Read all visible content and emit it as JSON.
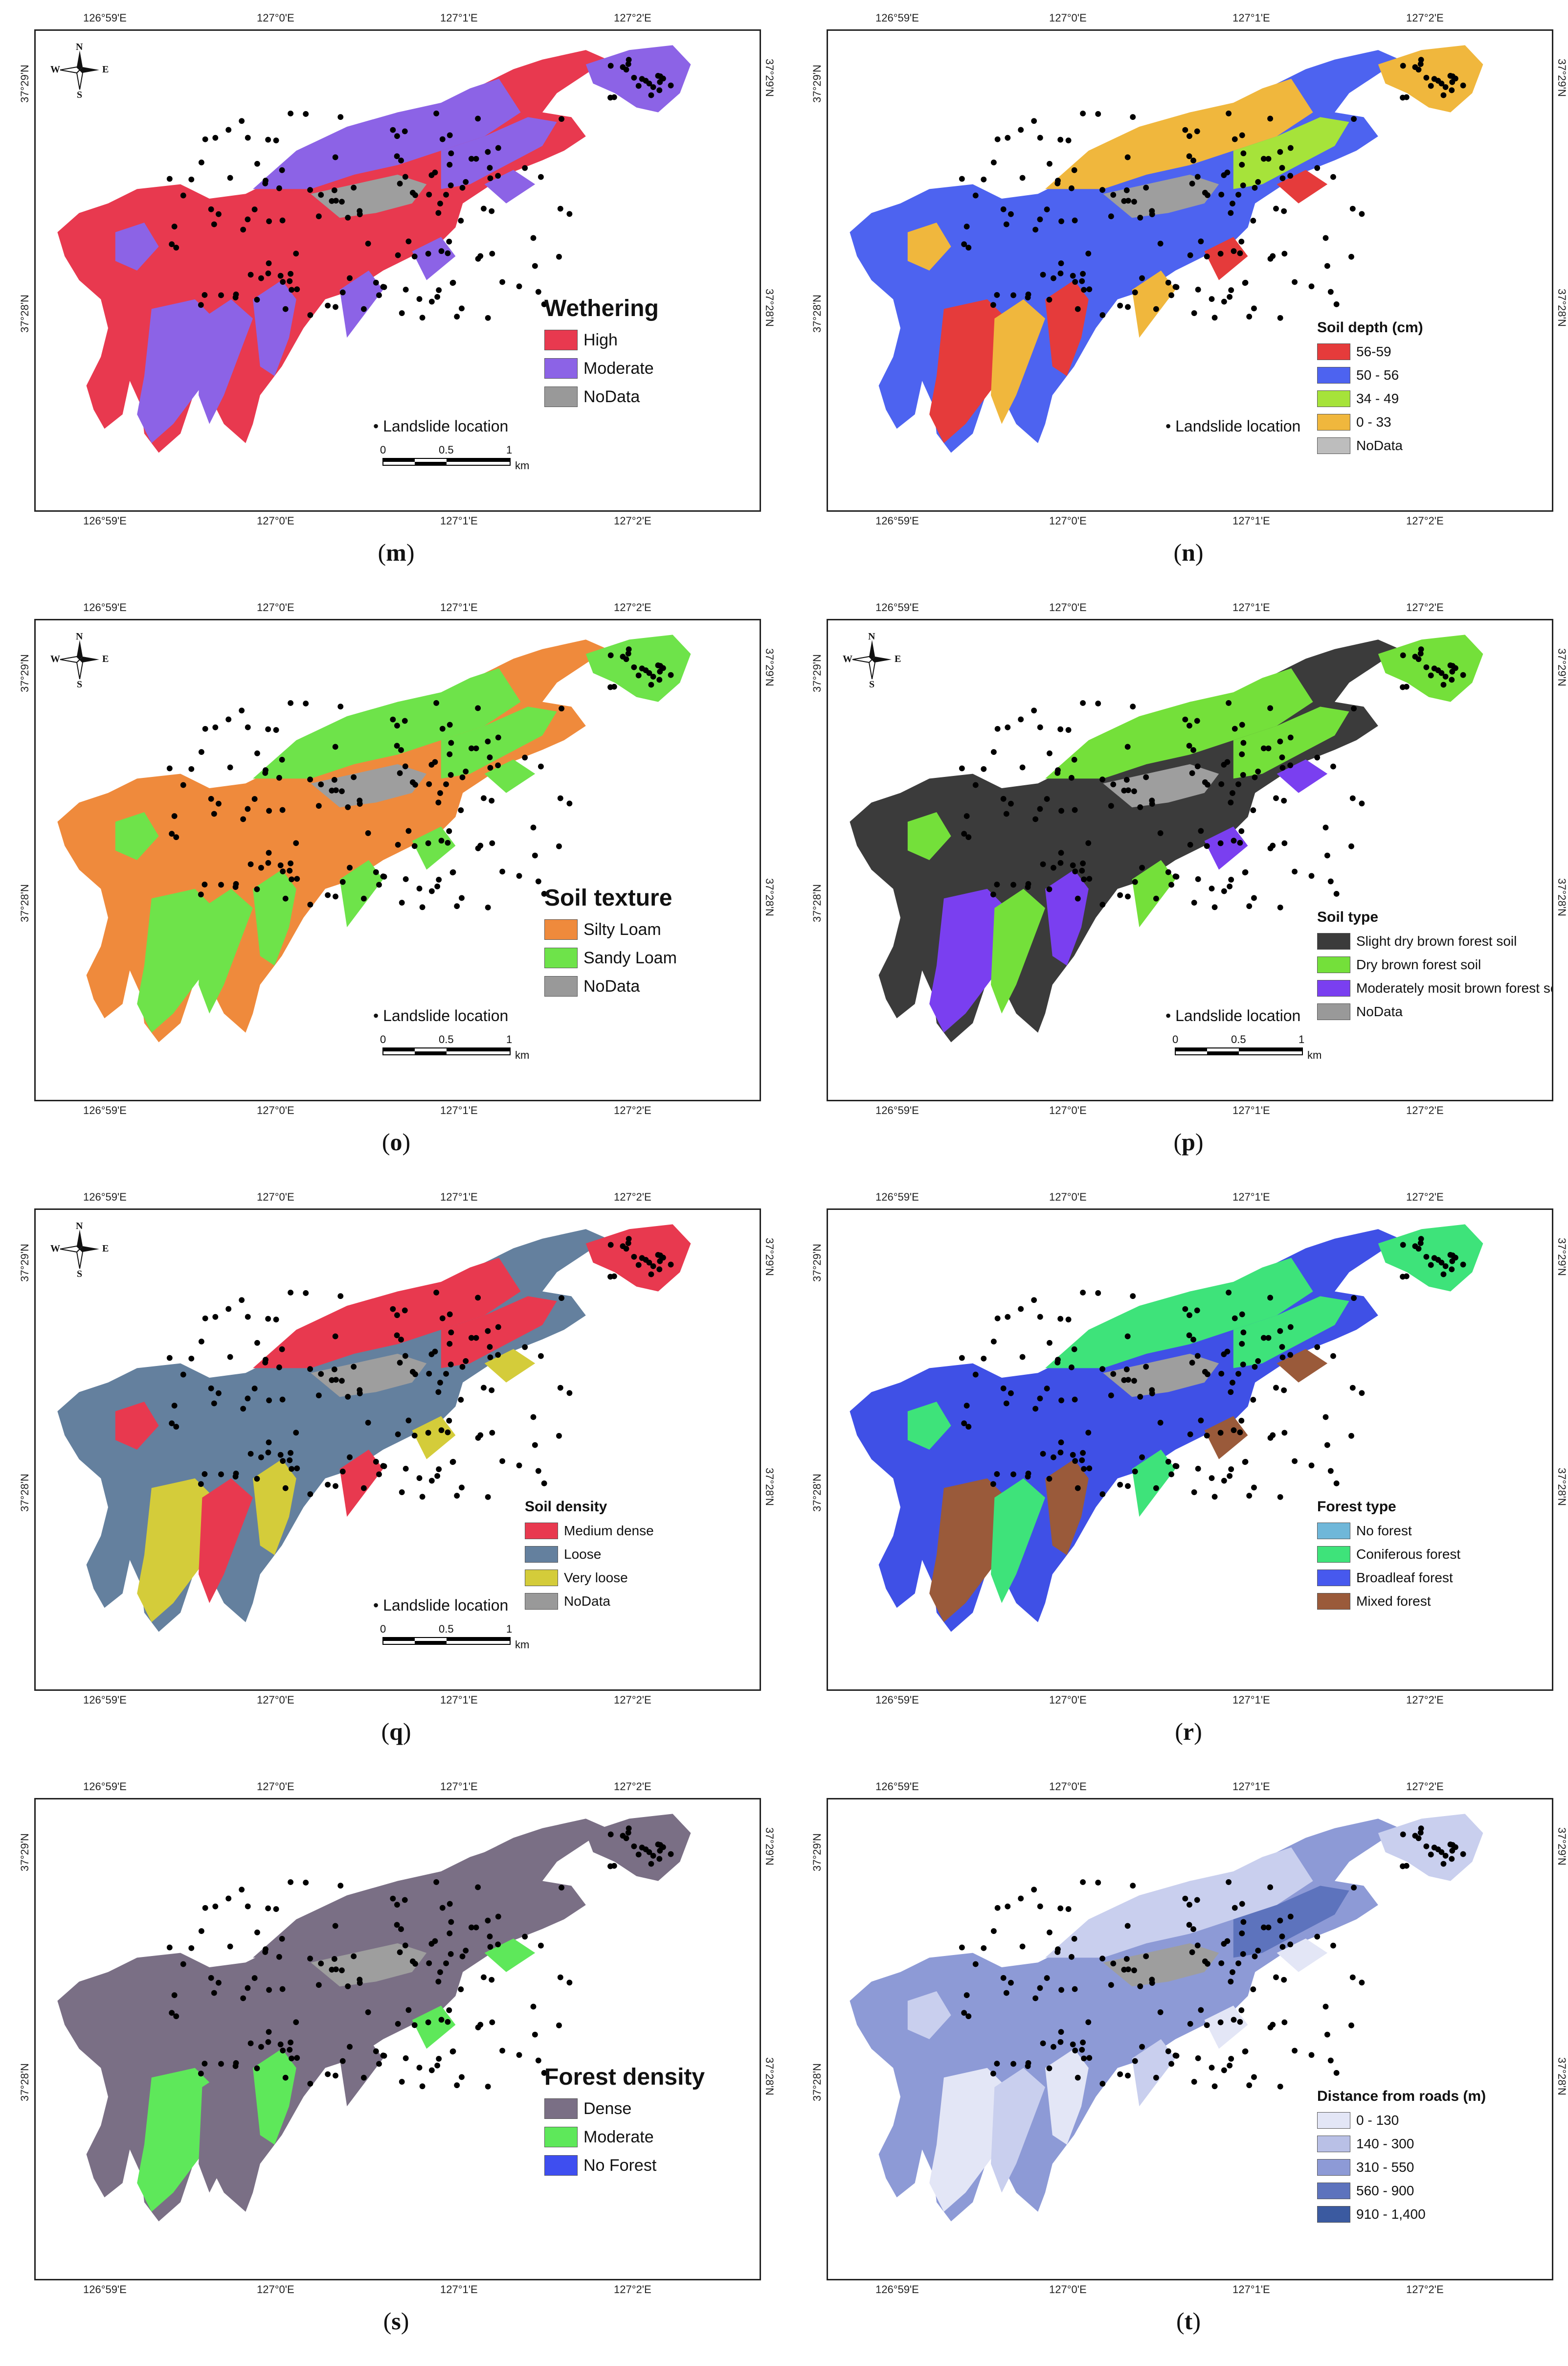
{
  "ticks": {
    "lon": [
      "126°59'E",
      "127°0'E",
      "127°1'E",
      "127°2'E"
    ],
    "lat": [
      "37°29'N",
      "37°28'N"
    ]
  },
  "compass": {
    "n": "N",
    "s": "S",
    "e": "E",
    "w": "W"
  },
  "scale": {
    "labels": [
      "0",
      "0.5",
      "1"
    ],
    "unit": "km"
  },
  "landslide_label": "Landslide location",
  "panels": [
    {
      "id": "m",
      "caption": "m",
      "legend": {
        "title": "Wethering",
        "items": [
          {
            "label": "High",
            "color": "#e8394f"
          },
          {
            "label": "Moderate",
            "color": "#8c63e6"
          },
          {
            "label": "NoData",
            "color": "#999999"
          }
        ]
      },
      "colors": {
        "a": "#e8394f",
        "b": "#8c63e6"
      },
      "show_compass": true,
      "show_scale": true,
      "show_landslide": true
    },
    {
      "id": "n",
      "caption": "n",
      "legend": {
        "title": "Soil depth (cm)",
        "items": [
          {
            "label": "56-59",
            "color": "#e53b3b"
          },
          {
            "label": "50 - 56",
            "color": "#4d63f0"
          },
          {
            "label": "34 - 49",
            "color": "#a6e33a"
          },
          {
            "label": "0 - 33",
            "color": "#f0b73d"
          },
          {
            "label": "NoData",
            "color": "#bdbdbd"
          }
        ]
      },
      "colors": {
        "a": "#4d63f0",
        "b": "#f0b73d",
        "c": "#a6e33a",
        "d": "#e53b3b"
      },
      "show_compass": false,
      "show_scale": false,
      "show_landslide": true
    },
    {
      "id": "o",
      "caption": "o",
      "legend": {
        "title": "Soil texture",
        "items": [
          {
            "label": "Silty Loam",
            "color": "#ef8a3c"
          },
          {
            "label": "Sandy Loam",
            "color": "#6ee34a"
          },
          {
            "label": "NoData",
            "color": "#999999"
          }
        ]
      },
      "colors": {
        "a": "#ef8a3c",
        "b": "#6ee34a"
      },
      "show_compass": true,
      "show_scale": true,
      "show_landslide": true
    },
    {
      "id": "p",
      "caption": "p",
      "legend": {
        "title": "Soil type",
        "items": [
          {
            "label": "Slight dry brown forest soil",
            "color": "#3b3b3b"
          },
          {
            "label": "Dry brown forest soil",
            "color": "#74e03a"
          },
          {
            "label": "Moderately mosit brown forest soil",
            "color": "#7a3ff0"
          },
          {
            "label": "NoData",
            "color": "#999999"
          }
        ]
      },
      "colors": {
        "a": "#3b3b3b",
        "b": "#74e03a",
        "d": "#7a3ff0"
      },
      "show_compass": true,
      "show_scale": true,
      "show_landslide": true
    },
    {
      "id": "q",
      "caption": "q",
      "legend": {
        "title": "Soil density",
        "items": [
          {
            "label": "Medium dense",
            "color": "#e8394f"
          },
          {
            "label": "Loose",
            "color": "#64809e"
          },
          {
            "label": "Very loose",
            "color": "#d4cc3a"
          },
          {
            "label": "NoData",
            "color": "#999999"
          }
        ]
      },
      "colors": {
        "a": "#64809e",
        "b": "#e8394f",
        "d": "#d4cc3a"
      },
      "show_compass": true,
      "show_scale": true,
      "show_landslide": true
    },
    {
      "id": "r",
      "caption": "r",
      "legend": {
        "title": "Forest type",
        "items": [
          {
            "label": "No forest",
            "color": "#6fb7d9"
          },
          {
            "label": "Coniferous forest",
            "color": "#3ee37a"
          },
          {
            "label": "Broadleaf forest",
            "color": "#4759ee"
          },
          {
            "label": "Mixed forest",
            "color": "#9a5a3a"
          }
        ]
      },
      "colors": {
        "a": "#3f50e6",
        "b": "#3ee37a",
        "d": "#9a5a3a"
      },
      "show_compass": false,
      "show_scale": false,
      "show_landslide": false
    },
    {
      "id": "s",
      "caption": "s",
      "legend": {
        "title": "Forest density",
        "items": [
          {
            "label": "Dense",
            "color": "#7a6f85"
          },
          {
            "label": "Moderate",
            "color": "#5ee85a"
          },
          {
            "label": "No Forest",
            "color": "#3e4ef0"
          }
        ]
      },
      "colors": {
        "a": "#7a6f85",
        "b": "#7a6f85",
        "d": "#5ee85a"
      },
      "show_compass": false,
      "show_scale": false,
      "show_landslide": false
    },
    {
      "id": "t",
      "caption": "t",
      "legend": {
        "title": "Distance from roads (m)",
        "items": [
          {
            "label": "0 - 130",
            "color": "#e3e6f6"
          },
          {
            "label": "140 - 300",
            "color": "#b9c0e6"
          },
          {
            "label": "310 - 550",
            "color": "#8d9ad6"
          },
          {
            "label": "560 - 900",
            "color": "#5d73bd"
          },
          {
            "label": "910 - 1,400",
            "color": "#3b5aa0"
          }
        ]
      },
      "colors": {
        "a": "#8d9ad6",
        "b": "#c9cfee",
        "c": "#5d73bd",
        "d": "#e3e6f6"
      },
      "show_compass": false,
      "show_scale": false,
      "show_landslide": false
    }
  ]
}
